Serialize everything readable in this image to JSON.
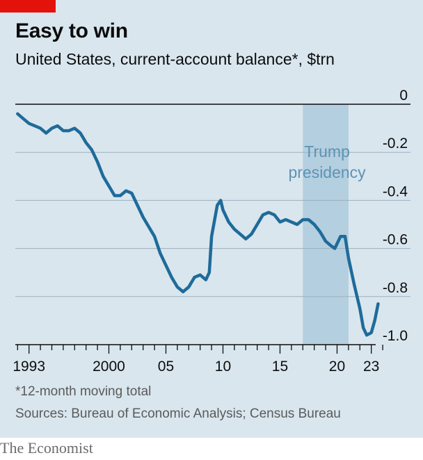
{
  "chart_data": {
    "type": "line",
    "title": "Easy to win",
    "subtitle": "United States, current-account balance*, $trn",
    "xlabel": "",
    "ylabel": "",
    "xlim": [
      1993,
      2024
    ],
    "ylim": [
      -1.0,
      0
    ],
    "y_ticks": [
      0,
      -0.2,
      -0.4,
      -0.6,
      -0.8,
      -1.0
    ],
    "y_tick_labels": [
      "0",
      "-0.2",
      "-0.4",
      "-0.6",
      "-0.8",
      "-1.0"
    ],
    "x_ticks": [
      1993,
      2000,
      2005,
      2010,
      2015,
      2020,
      2023
    ],
    "x_tick_labels": [
      "1993",
      "2000",
      "05",
      "10",
      "15",
      "20",
      "23"
    ],
    "grid": true,
    "shaded_band": {
      "x_start": 2017.0,
      "x_end": 2021.0,
      "label_lines": [
        "Trump",
        "presidency"
      ]
    },
    "series": [
      {
        "color": "#1f6b9a",
        "points": [
          [
            1992.0,
            -0.04
          ],
          [
            1992.5,
            -0.06
          ],
          [
            1993.0,
            -0.08
          ],
          [
            1993.5,
            -0.09
          ],
          [
            1994.0,
            -0.1
          ],
          [
            1994.5,
            -0.12
          ],
          [
            1995.0,
            -0.1
          ],
          [
            1995.5,
            -0.09
          ],
          [
            1996.0,
            -0.11
          ],
          [
            1996.5,
            -0.11
          ],
          [
            1997.0,
            -0.1
          ],
          [
            1997.5,
            -0.12
          ],
          [
            1998.0,
            -0.16
          ],
          [
            1998.5,
            -0.19
          ],
          [
            1999.0,
            -0.24
          ],
          [
            1999.5,
            -0.3
          ],
          [
            2000.0,
            -0.34
          ],
          [
            2000.5,
            -0.38
          ],
          [
            2001.0,
            -0.38
          ],
          [
            2001.5,
            -0.36
          ],
          [
            2002.0,
            -0.37
          ],
          [
            2002.5,
            -0.42
          ],
          [
            2003.0,
            -0.47
          ],
          [
            2003.5,
            -0.51
          ],
          [
            2004.0,
            -0.55
          ],
          [
            2004.5,
            -0.62
          ],
          [
            2005.0,
            -0.67
          ],
          [
            2005.5,
            -0.72
          ],
          [
            2006.0,
            -0.76
          ],
          [
            2006.5,
            -0.78
          ],
          [
            2007.0,
            -0.76
          ],
          [
            2007.5,
            -0.72
          ],
          [
            2008.0,
            -0.71
          ],
          [
            2008.5,
            -0.73
          ],
          [
            2008.8,
            -0.7
          ],
          [
            2009.0,
            -0.55
          ],
          [
            2009.5,
            -0.42
          ],
          [
            2009.8,
            -0.4
          ],
          [
            2010.0,
            -0.44
          ],
          [
            2010.5,
            -0.49
          ],
          [
            2011.0,
            -0.52
          ],
          [
            2011.5,
            -0.54
          ],
          [
            2012.0,
            -0.56
          ],
          [
            2012.5,
            -0.54
          ],
          [
            2013.0,
            -0.5
          ],
          [
            2013.5,
            -0.46
          ],
          [
            2014.0,
            -0.45
          ],
          [
            2014.5,
            -0.46
          ],
          [
            2015.0,
            -0.49
          ],
          [
            2015.5,
            -0.48
          ],
          [
            2016.0,
            -0.49
          ],
          [
            2016.5,
            -0.5
          ],
          [
            2017.0,
            -0.48
          ],
          [
            2017.5,
            -0.48
          ],
          [
            2018.0,
            -0.5
          ],
          [
            2018.5,
            -0.53
          ],
          [
            2019.0,
            -0.57
          ],
          [
            2019.5,
            -0.59
          ],
          [
            2019.8,
            -0.6
          ],
          [
            2020.0,
            -0.58
          ],
          [
            2020.3,
            -0.55
          ],
          [
            2020.7,
            -0.55
          ],
          [
            2021.0,
            -0.64
          ],
          [
            2021.5,
            -0.75
          ],
          [
            2022.0,
            -0.85
          ],
          [
            2022.3,
            -0.93
          ],
          [
            2022.6,
            -0.96
          ],
          [
            2023.0,
            -0.95
          ],
          [
            2023.3,
            -0.9
          ],
          [
            2023.6,
            -0.83
          ]
        ]
      }
    ]
  },
  "footnotes": {
    "asterisk": "*12-month moving total",
    "sources": "Sources: Bureau of Economic Analysis; Census Bureau"
  },
  "brand": "The Economist",
  "colors": {
    "background": "#d9e6ee",
    "accent": "#e3120b",
    "line": "#1f6b9a",
    "band": "#b4cfdf"
  }
}
